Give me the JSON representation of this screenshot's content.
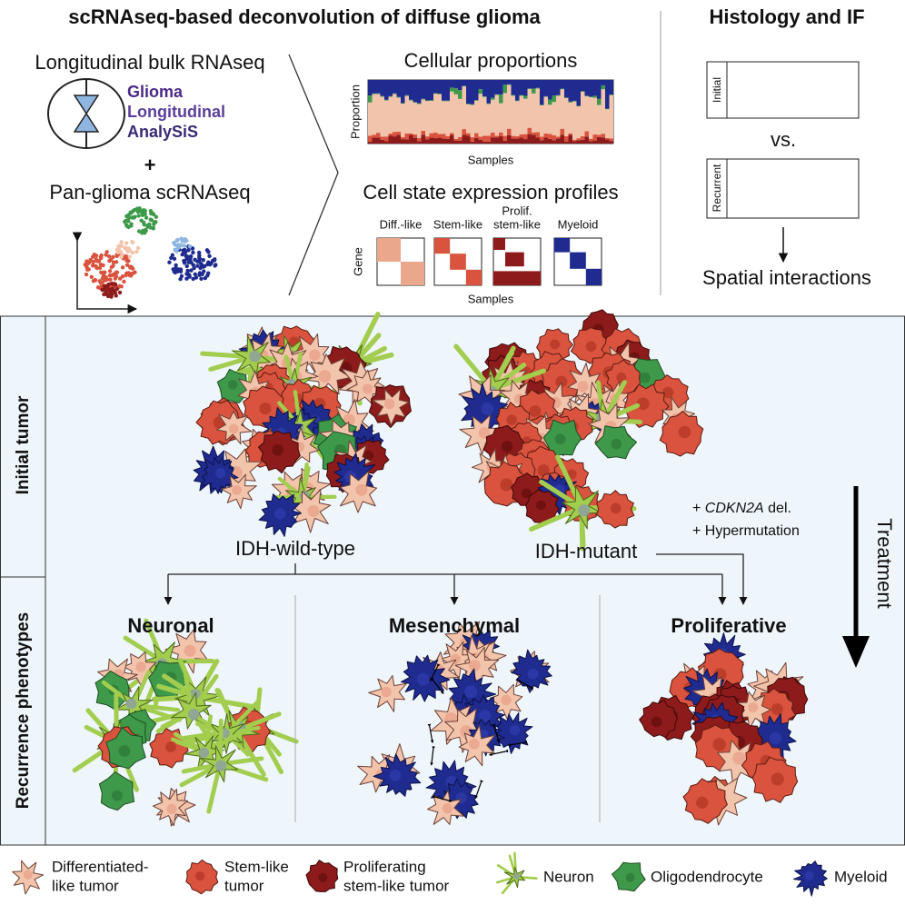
{
  "header": {
    "title": "scRNAseq-based deconvolution of diffuse glioma",
    "side_title": "Histology and IF"
  },
  "left": {
    "bulk": "Longitudinal bulk RNAseq",
    "glass": [
      "Glioma",
      "Longitudinal",
      "AnalySiS"
    ],
    "plus": "+",
    "scrna": "Pan-glioma scRNAseq"
  },
  "middle": {
    "proportions_title": "Cellular proportions",
    "y_label": "Proportion",
    "x_label": "Samples",
    "profiles_title": "Cell state expression profiles",
    "states": [
      [
        "Diff.-like"
      ],
      [
        "Stem-like"
      ],
      [
        "Prolif.",
        "stem-like"
      ],
      [
        "Myeloid"
      ]
    ],
    "gene_label": "Gene",
    "profiles_x_label": "Samples"
  },
  "right": {
    "initial": "Initial",
    "vs": "vs.",
    "recurrent": "Recurrent",
    "spatial": "Spatial interactions"
  },
  "main": {
    "row_labels": [
      "Initial tumor",
      "Recurrence phenotypes"
    ],
    "idh_wt": "IDH-wild-type",
    "idh_mut": "IDH-mutant",
    "alteration_1": {
      "prefix": "+",
      "gene": "CDKN2A",
      "suffix": "del."
    },
    "alteration_2": "+ Hypermutation",
    "treatment": "Treatment",
    "phenotypes": [
      "Neuronal",
      "Mesenchymal",
      "Proliferative"
    ]
  },
  "legend": [
    [
      "Differentiated-",
      "like tumor"
    ],
    [
      "Stem-like",
      "tumor"
    ],
    [
      "Proliferating",
      "stem-like tumor"
    ],
    [
      "Neuron"
    ],
    [
      "Oligodendrocyte"
    ],
    [
      "Myeloid"
    ]
  ]
}
